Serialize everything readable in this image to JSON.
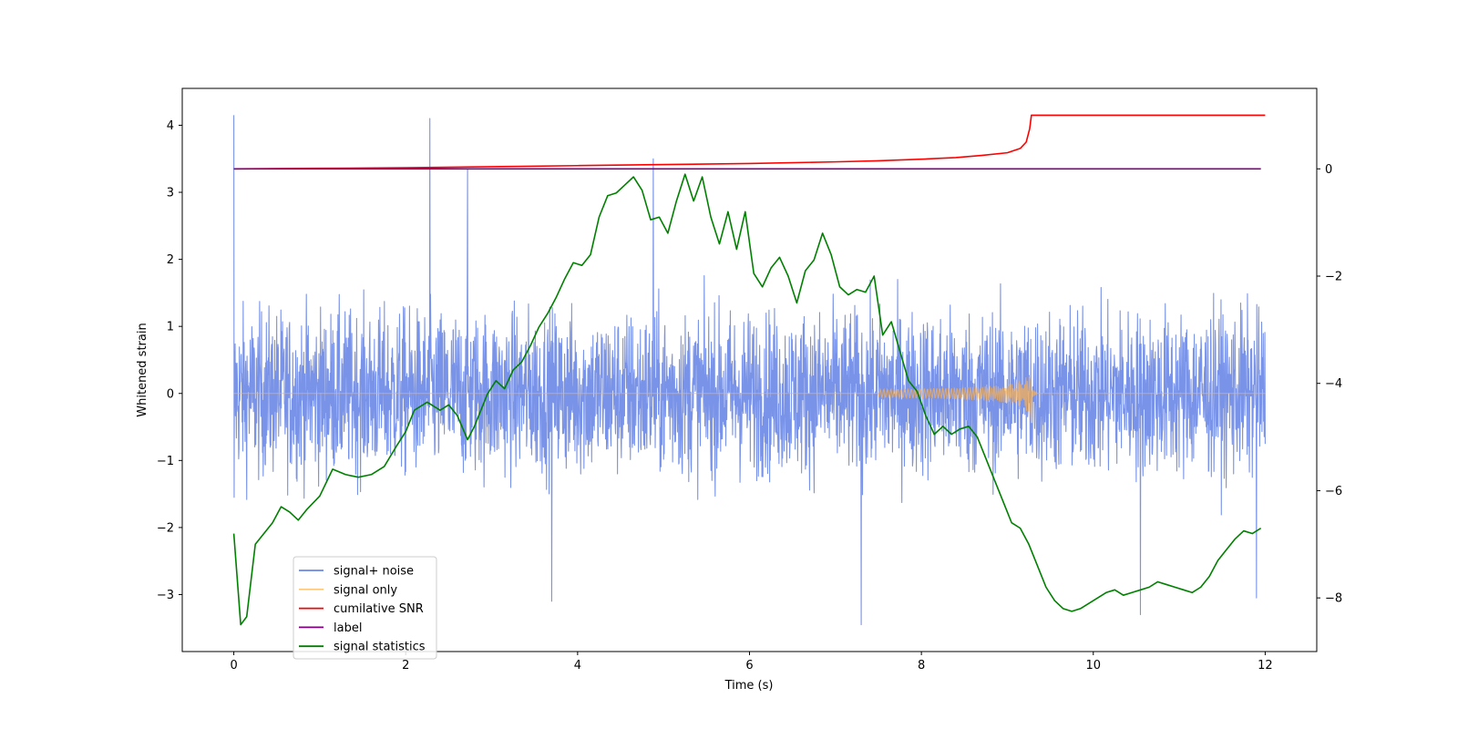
{
  "chart_data": {
    "type": "line",
    "xlabel": "Time (s)",
    "ylabel_left": "Whitened strain",
    "ylabel_right": "",
    "xlim": [
      -0.6,
      12.6
    ],
    "ylim_left": [
      -3.85,
      4.55
    ],
    "ylim_right": [
      -9.0,
      1.5
    ],
    "x_ticks": [
      0,
      2,
      4,
      6,
      8,
      10,
      12
    ],
    "x_tick_labels": [
      "0",
      "2",
      "4",
      "6",
      "8",
      "10",
      "12"
    ],
    "y_ticks_left": [
      -3,
      -2,
      -1,
      0,
      1,
      2,
      3,
      4
    ],
    "y_tick_labels_left": [
      "−3",
      "−2",
      "−1",
      "0",
      "1",
      "2",
      "3",
      "4"
    ],
    "y_ticks_right": [
      -8,
      -6,
      -4,
      -2,
      0
    ],
    "y_tick_labels_right": [
      "−8",
      "−6",
      "−4",
      "−2",
      "0"
    ],
    "grid": false,
    "legend_position": "lower-left",
    "colors": {
      "signal_noise": "#6a87e6",
      "signal_only": "#ffb04a",
      "snr": "#ff0000",
      "label": "#800080",
      "statistics": "#008000"
    },
    "legend": [
      {
        "label": "signal+ noise",
        "series": "signal_noise"
      },
      {
        "label": "signal only",
        "series": "signal_only"
      },
      {
        "label": "cumilative SNR",
        "series": "snr"
      },
      {
        "label": "label",
        "series": "label"
      },
      {
        "label": "signal statistics",
        "series": "statistics"
      }
    ],
    "series": {
      "signal_noise": {
        "name": "signal+ noise",
        "axis": "left",
        "x_range": [
          0,
          12
        ],
        "typical_peak": 1.9,
        "peak_values": [
          {
            "x": 0.0,
            "y": 4.15
          },
          {
            "x": 0.0,
            "y": -1.55
          },
          {
            "x": 2.28,
            "y": 4.1
          },
          {
            "x": 2.72,
            "y": 3.35
          },
          {
            "x": 4.88,
            "y": 3.5
          },
          {
            "x": 3.7,
            "y": -3.1
          },
          {
            "x": 7.3,
            "y": -3.45
          },
          {
            "x": 10.55,
            "y": -3.3
          },
          {
            "x": 11.9,
            "y": -3.05
          }
        ]
      },
      "signal_only": {
        "name": "signal only",
        "axis": "left",
        "x_range": [
          0,
          12
        ],
        "merger_time": 9.28,
        "peak_amplitude": 0.48
      },
      "snr": {
        "name": "cumilative SNR",
        "axis": "right",
        "x": [
          0,
          1,
          2,
          3,
          4,
          5,
          6,
          7,
          7.5,
          8,
          8.4,
          8.7,
          9.0,
          9.15,
          9.22,
          9.26,
          9.28,
          9.3,
          10,
          11,
          12
        ],
        "values": [
          0.0,
          0.01,
          0.02,
          0.04,
          0.06,
          0.08,
          0.1,
          0.13,
          0.15,
          0.18,
          0.21,
          0.25,
          0.3,
          0.38,
          0.5,
          0.75,
          1.0,
          1.0,
          1.0,
          1.0,
          1.0
        ]
      },
      "label": {
        "name": "label",
        "axis": "right",
        "x": [
          0,
          11.95
        ],
        "values": [
          0.0,
          0.0
        ]
      },
      "statistics": {
        "name": "signal statistics",
        "axis": "right",
        "x": [
          0,
          0.08,
          0.15,
          0.25,
          0.35,
          0.45,
          0.55,
          0.65,
          0.75,
          0.85,
          1.0,
          1.15,
          1.3,
          1.45,
          1.6,
          1.75,
          1.9,
          2.0,
          2.1,
          2.25,
          2.4,
          2.5,
          2.6,
          2.72,
          2.8,
          2.95,
          3.05,
          3.15,
          3.25,
          3.35,
          3.45,
          3.55,
          3.65,
          3.75,
          3.85,
          3.95,
          4.05,
          4.15,
          4.25,
          4.35,
          4.45,
          4.55,
          4.65,
          4.75,
          4.85,
          4.95,
          5.05,
          5.15,
          5.25,
          5.35,
          5.45,
          5.55,
          5.65,
          5.75,
          5.85,
          5.95,
          6.05,
          6.15,
          6.25,
          6.35,
          6.45,
          6.55,
          6.65,
          6.75,
          6.85,
          6.95,
          7.05,
          7.15,
          7.25,
          7.35,
          7.45,
          7.55,
          7.65,
          7.75,
          7.85,
          7.95,
          8.05,
          8.15,
          8.25,
          8.35,
          8.45,
          8.55,
          8.65,
          8.75,
          8.85,
          8.95,
          9.05,
          9.15,
          9.25,
          9.35,
          9.45,
          9.55,
          9.65,
          9.75,
          9.85,
          9.95,
          10.05,
          10.15,
          10.25,
          10.35,
          10.45,
          10.55,
          10.65,
          10.75,
          10.85,
          10.95,
          11.05,
          11.15,
          11.25,
          11.35,
          11.45,
          11.55,
          11.65,
          11.75,
          11.85,
          11.95
        ],
        "values": [
          -6.8,
          -8.5,
          -8.35,
          -7.0,
          -6.8,
          -6.6,
          -6.3,
          -6.4,
          -6.55,
          -6.35,
          -6.1,
          -5.6,
          -5.7,
          -5.75,
          -5.7,
          -5.55,
          -5.15,
          -4.9,
          -4.5,
          -4.35,
          -4.5,
          -4.4,
          -4.6,
          -5.05,
          -4.8,
          -4.2,
          -3.95,
          -4.1,
          -3.75,
          -3.6,
          -3.3,
          -2.95,
          -2.7,
          -2.4,
          -2.05,
          -1.75,
          -1.8,
          -1.6,
          -0.9,
          -0.5,
          -0.45,
          -0.3,
          -0.15,
          -0.4,
          -0.95,
          -0.9,
          -1.2,
          -0.6,
          -0.1,
          -0.6,
          -0.15,
          -0.9,
          -1.4,
          -0.8,
          -1.5,
          -0.8,
          -1.95,
          -2.2,
          -1.85,
          -1.65,
          -2.0,
          -2.5,
          -1.9,
          -1.7,
          -1.2,
          -1.6,
          -2.2,
          -2.35,
          -2.25,
          -2.3,
          -2.0,
          -3.1,
          -2.85,
          -3.4,
          -3.95,
          -4.15,
          -4.6,
          -4.95,
          -4.8,
          -4.95,
          -4.85,
          -4.8,
          -5.0,
          -5.4,
          -5.8,
          -6.2,
          -6.6,
          -6.7,
          -7.0,
          -7.4,
          -7.8,
          -8.05,
          -8.2,
          -8.25,
          -8.2,
          -8.1,
          -8.0,
          -7.9,
          -7.85,
          -7.95,
          -7.9,
          -7.85,
          -7.8,
          -7.7,
          -7.75,
          -7.8,
          -7.85,
          -7.9,
          -7.8,
          -7.6,
          -7.3,
          -7.1,
          -6.9,
          -6.75,
          -6.8,
          -6.7
        ]
      }
    }
  }
}
